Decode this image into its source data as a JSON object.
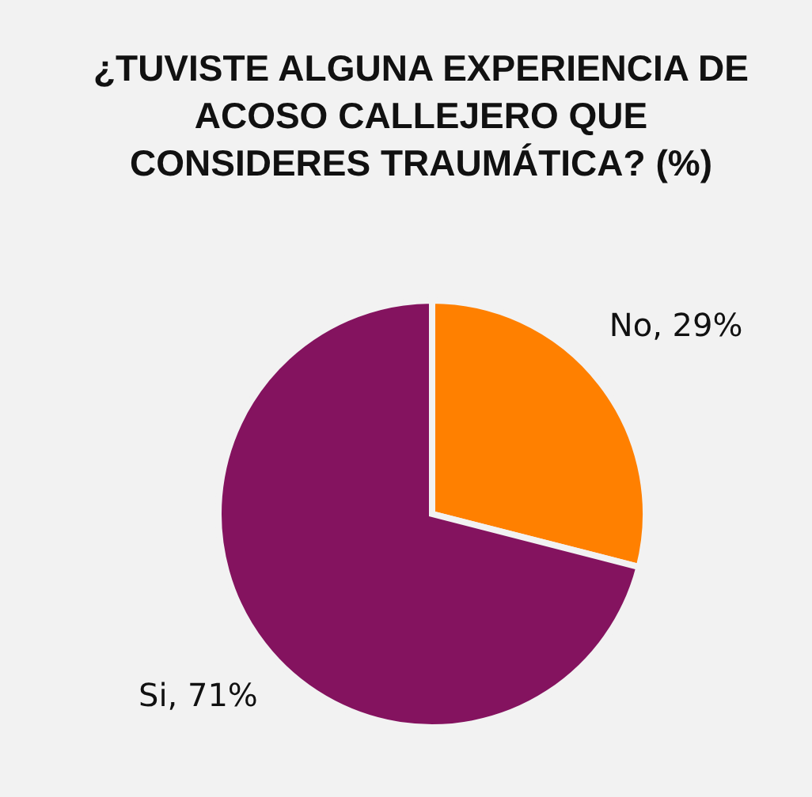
{
  "chart_data": {
    "type": "pie",
    "title": "¿TUVISTE ALGUNA EXPERIENCIA DE ACOSO CALLEJERO QUE CONSIDERES TRAUMÁTICA? (%)",
    "categories": [
      "No",
      "Si"
    ],
    "values": [
      29,
      71
    ],
    "colors": [
      "#ff8000",
      "#84135f"
    ],
    "value_labels": [
      "29%",
      "71%"
    ]
  }
}
